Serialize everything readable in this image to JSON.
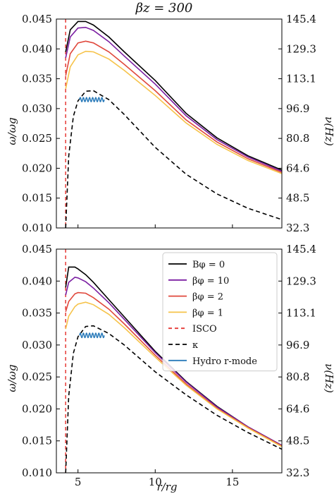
{
  "chart_data": [
    {
      "type": "line",
      "title": "βz = 300",
      "xlabel": "",
      "ylabel": "ω/ωg",
      "y2label": "ν(Hz)",
      "xlim": [
        3.6,
        18.2
      ],
      "ylim": [
        0.01,
        0.045
      ],
      "y2lim": [
        32.3,
        145.4
      ],
      "xticks": [
        5,
        10,
        15
      ],
      "xtick_labels": [
        "",
        "",
        ""
      ],
      "yticks": [
        "0.010",
        "0.015",
        "0.020",
        "0.025",
        "0.030",
        "0.035",
        "0.040",
        "0.045"
      ],
      "y2ticks": [
        "32.3",
        "48.5",
        "64.6",
        "80.8",
        "96.9",
        "113.1",
        "129.3",
        "145.4"
      ],
      "grid": false,
      "isco_x": 4.2,
      "series": [
        {
          "name": "Bφ = 0",
          "color": "#000000",
          "dash": "none",
          "x": [
            4.2,
            4.5,
            5.0,
            5.5,
            6.0,
            7.0,
            8.0,
            10.0,
            12.0,
            14.0,
            16.0,
            18.2
          ],
          "y": [
            0.0395,
            0.0432,
            0.0446,
            0.0446,
            0.044,
            0.042,
            0.0395,
            0.0347,
            0.0292,
            0.0251,
            0.0221,
            0.0197
          ]
        },
        {
          "name": "βφ = 10",
          "color": "#7b1fa2",
          "dash": "none",
          "x": [
            4.2,
            4.5,
            5.0,
            5.5,
            6.0,
            7.0,
            8.0,
            10.0,
            12.0,
            14.0,
            16.0,
            18.2
          ],
          "y": [
            0.0385,
            0.042,
            0.0435,
            0.0436,
            0.0431,
            0.0412,
            0.0388,
            0.0341,
            0.0288,
            0.0248,
            0.0219,
            0.0195
          ]
        },
        {
          "name": "βφ = 2",
          "color": "#e0483c",
          "dash": "none",
          "x": [
            4.2,
            4.5,
            5.0,
            5.5,
            6.0,
            7.0,
            8.0,
            10.0,
            12.0,
            14.0,
            16.0,
            18.2
          ],
          "y": [
            0.0355,
            0.0392,
            0.041,
            0.0413,
            0.041,
            0.0395,
            0.0374,
            0.033,
            0.0281,
            0.0244,
            0.0216,
            0.0193
          ]
        },
        {
          "name": "βφ = 1",
          "color": "#f6c34a",
          "dash": "none",
          "x": [
            4.2,
            4.5,
            5.0,
            5.5,
            6.0,
            7.0,
            8.0,
            10.0,
            12.0,
            14.0,
            16.0,
            18.2
          ],
          "y": [
            0.0333,
            0.037,
            0.039,
            0.0396,
            0.0395,
            0.0383,
            0.0364,
            0.0322,
            0.0276,
            0.024,
            0.0213,
            0.0191
          ]
        },
        {
          "name": "κ",
          "color": "#000000",
          "dash": "6,4",
          "x": [
            4.2,
            4.4,
            4.7,
            5.0,
            5.5,
            6.0,
            7.0,
            8.0,
            10.0,
            12.0,
            14.0,
            16.0,
            18.2
          ],
          "y": [
            0.01,
            0.022,
            0.0287,
            0.0313,
            0.0329,
            0.033,
            0.0315,
            0.029,
            0.0235,
            0.019,
            0.0157,
            0.0133,
            0.0114
          ]
        }
      ],
      "hydro_rmode": {
        "name": "Hydro r-mode",
        "color": "#2b7bba",
        "x_start": 5.1,
        "x_end": 6.7,
        "y_center": 0.0315,
        "amplitude": 0.00035,
        "cycles": 8
      }
    },
    {
      "type": "line",
      "title": "",
      "xlabel": "r/rg",
      "ylabel": "ω/ωg",
      "y2label": "ν(Hz)",
      "xlim": [
        3.6,
        18.2
      ],
      "ylim": [
        0.01,
        0.045
      ],
      "y2lim": [
        32.3,
        145.4
      ],
      "xticks": [
        5,
        10,
        15
      ],
      "xtick_labels": [
        "5",
        "10",
        "15"
      ],
      "yticks": [
        "0.010",
        "0.015",
        "0.020",
        "0.025",
        "0.030",
        "0.035",
        "0.040",
        "0.045"
      ],
      "y2ticks": [
        "32.3",
        "48.5",
        "64.6",
        "80.8",
        "96.9",
        "113.1",
        "129.3",
        "145.4"
      ],
      "grid": false,
      "legend": "top-right",
      "isco_x": 4.2,
      "series": [
        {
          "name": "Bφ = 0",
          "color": "#000000",
          "dash": "none",
          "x": [
            4.2,
            4.4,
            4.8,
            5.0,
            5.5,
            6.0,
            7.0,
            8.0,
            10.0,
            12.0,
            14.0,
            16.0,
            18.2
          ],
          "y": [
            0.039,
            0.0422,
            0.0422,
            0.0419,
            0.041,
            0.0398,
            0.0371,
            0.0344,
            0.029,
            0.0243,
            0.0204,
            0.0172,
            0.0143
          ]
        },
        {
          "name": "βφ = 10",
          "color": "#7b1fa2",
          "dash": "none",
          "x": [
            4.2,
            4.4,
            4.8,
            5.0,
            5.5,
            6.0,
            7.0,
            8.0,
            10.0,
            12.0,
            14.0,
            16.0,
            18.2
          ],
          "y": [
            0.0378,
            0.0398,
            0.0406,
            0.0405,
            0.0399,
            0.0389,
            0.0366,
            0.034,
            0.0288,
            0.0242,
            0.0203,
            0.0172,
            0.0143
          ]
        },
        {
          "name": "βφ = 2",
          "color": "#e0483c",
          "dash": "none",
          "x": [
            4.2,
            4.4,
            4.8,
            5.0,
            5.5,
            6.0,
            7.0,
            8.0,
            10.0,
            12.0,
            14.0,
            16.0,
            18.2
          ],
          "y": [
            0.0352,
            0.0368,
            0.038,
            0.0382,
            0.0381,
            0.0374,
            0.0356,
            0.0333,
            0.0284,
            0.0239,
            0.0201,
            0.0171,
            0.0142
          ]
        },
        {
          "name": "βφ = 1",
          "color": "#f6c34a",
          "dash": "none",
          "x": [
            4.2,
            4.4,
            4.8,
            5.0,
            5.5,
            6.0,
            7.0,
            8.0,
            10.0,
            12.0,
            14.0,
            16.0,
            18.2
          ],
          "y": [
            0.0325,
            0.0345,
            0.036,
            0.0364,
            0.0367,
            0.0363,
            0.0348,
            0.0327,
            0.0281,
            0.0237,
            0.02,
            0.017,
            0.0141
          ]
        },
        {
          "name": "ISCO",
          "color": "#e53935",
          "dash": "5,4",
          "x": [],
          "y": []
        },
        {
          "name": "κ",
          "color": "#000000",
          "dash": "6,4",
          "x": [
            4.2,
            4.4,
            4.7,
            5.0,
            5.5,
            6.0,
            7.0,
            8.0,
            10.0,
            12.0,
            14.0,
            16.0,
            18.2
          ],
          "y": [
            0.01,
            0.022,
            0.0287,
            0.0313,
            0.0329,
            0.033,
            0.0318,
            0.03,
            0.0258,
            0.0222,
            0.019,
            0.0163,
            0.0137
          ]
        }
      ],
      "hydro_rmode": {
        "name": "Hydro r-mode",
        "color": "#2b7bba",
        "x_start": 5.1,
        "x_end": 6.7,
        "y_center": 0.0315,
        "amplitude": 0.00035,
        "cycles": 8
      }
    }
  ]
}
